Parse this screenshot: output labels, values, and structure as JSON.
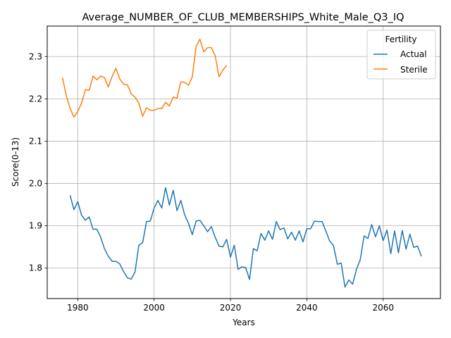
{
  "chart_data": {
    "type": "line",
    "title": "Average_NUMBER_OF_CLUB_MEMBERSHIPS_White_Male_Q3_IQ",
    "xlabel": "Years",
    "ylabel": "Score(0-13)",
    "xlim": [
      1972,
      2075
    ],
    "ylim": [
      1.728,
      2.372
    ],
    "x_ticks": [
      1980,
      2000,
      2020,
      2040,
      2060
    ],
    "y_ticks": [
      1.8,
      1.9,
      2.0,
      2.1,
      2.2,
      2.3
    ],
    "x_tick_labels": [
      "1980",
      "2000",
      "2020",
      "2040",
      "2060"
    ],
    "y_tick_labels": [
      "1.8",
      "1.9",
      "2.0",
      "2.1",
      "2.2",
      "2.3"
    ],
    "grid": true,
    "legend": {
      "title": "Fertility",
      "placement": "top-right"
    },
    "series": [
      {
        "name": "Actual",
        "color": "#1f77b4",
        "x": [
          1978,
          1979,
          1980,
          1981,
          1982,
          1983,
          1984,
          1985,
          1986,
          1987,
          1988,
          1989,
          1990,
          1991,
          1992,
          1993,
          1994,
          1995,
          1996,
          1997,
          1998,
          1999,
          2000,
          2001,
          2002,
          2003,
          2004,
          2005,
          2006,
          2007,
          2008,
          2009,
          2010,
          2011,
          2012,
          2013,
          2014,
          2015,
          2016,
          2017,
          2018,
          2019,
          2020,
          2021,
          2022,
          2023,
          2024,
          2025,
          2026,
          2027,
          2028,
          2029,
          2030,
          2031,
          2032,
          2033,
          2034,
          2035,
          2036,
          2037,
          2038,
          2039,
          2040,
          2041,
          2042,
          2043,
          2044,
          2045,
          2046,
          2047,
          2048,
          2049,
          2050,
          2051,
          2052,
          2053,
          2054,
          2055,
          2056,
          2057,
          2058,
          2059,
          2060,
          2061,
          2062,
          2063,
          2064,
          2065,
          2066,
          2067,
          2068,
          2069,
          2070
        ],
        "values": [
          1.972,
          1.938,
          1.957,
          1.925,
          1.913,
          1.921,
          1.892,
          1.892,
          1.873,
          1.846,
          1.828,
          1.816,
          1.816,
          1.81,
          1.792,
          1.777,
          1.774,
          1.791,
          1.854,
          1.86,
          1.91,
          1.911,
          1.942,
          1.96,
          1.942,
          1.99,
          1.949,
          1.984,
          1.936,
          1.96,
          1.926,
          1.906,
          1.879,
          1.911,
          1.913,
          1.9,
          1.886,
          1.898,
          1.873,
          1.852,
          1.85,
          1.868,
          1.826,
          1.854,
          1.797,
          1.803,
          1.801,
          1.773,
          1.846,
          1.841,
          1.882,
          1.866,
          1.888,
          1.868,
          1.91,
          1.891,
          1.895,
          1.869,
          1.885,
          1.866,
          1.888,
          1.862,
          1.893,
          1.893,
          1.911,
          1.91,
          1.91,
          1.887,
          1.864,
          1.853,
          1.809,
          1.812,
          1.755,
          1.772,
          1.762,
          1.797,
          1.82,
          1.876,
          1.87,
          1.903,
          1.874,
          1.9,
          1.865,
          1.89,
          1.834,
          1.888,
          1.836,
          1.889,
          1.845,
          1.88,
          1.849,
          1.852,
          1.828
        ]
      },
      {
        "name": "Sterile",
        "color": "#ff7f0e",
        "x": [
          1976,
          1977,
          1978,
          1979,
          1980,
          1981,
          1982,
          1983,
          1984,
          1985,
          1986,
          1987,
          1988,
          1989,
          1990,
          1991,
          1992,
          1993,
          1994,
          1995,
          1996,
          1997,
          1998,
          1999,
          2000,
          2001,
          2002,
          2003,
          2004,
          2005,
          2006,
          2007,
          2008,
          2009,
          2010,
          2011,
          2012,
          2013,
          2014,
          2015,
          2016,
          2017,
          2018,
          2019
        ],
        "values": [
          2.25,
          2.207,
          2.177,
          2.157,
          2.17,
          2.19,
          2.222,
          2.22,
          2.254,
          2.245,
          2.254,
          2.25,
          2.228,
          2.253,
          2.272,
          2.247,
          2.235,
          2.233,
          2.212,
          2.204,
          2.19,
          2.159,
          2.179,
          2.173,
          2.173,
          2.177,
          2.177,
          2.192,
          2.183,
          2.204,
          2.202,
          2.24,
          2.239,
          2.232,
          2.252,
          2.324,
          2.341,
          2.311,
          2.321,
          2.321,
          2.302,
          2.252,
          2.268,
          2.279
        ]
      }
    ]
  }
}
